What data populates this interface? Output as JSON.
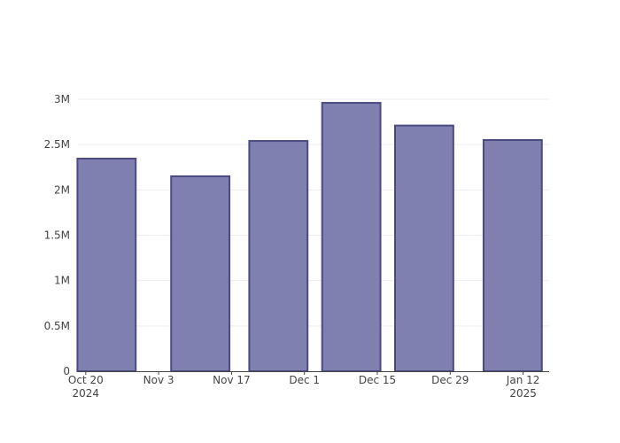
{
  "chart_data": {
    "type": "bar",
    "x": [
      "2024-10-24",
      "2024-11-11",
      "2024-11-26",
      "2024-12-10",
      "2024-12-24",
      "2025-01-10"
    ],
    "values": [
      2345000,
      2150000,
      2540000,
      2960000,
      2710000,
      2550000
    ],
    "color": "#7f7fb0",
    "edge_color": "#4b4b82",
    "xlim": [
      "2024-10-18T12:00",
      "2025-01-17T00:00"
    ],
    "xticks": [
      {
        "value": "2024-10-20",
        "label": "Oct 20\n2024"
      },
      {
        "value": "2024-11-03",
        "label": "Nov 3"
      },
      {
        "value": "2024-11-17",
        "label": "Nov 17"
      },
      {
        "value": "2024-12-01",
        "label": "Dec 1"
      },
      {
        "value": "2024-12-15",
        "label": "Dec 15"
      },
      {
        "value": "2024-12-29",
        "label": "Dec 29"
      },
      {
        "value": "2025-01-12",
        "label": "Jan 12\n2025"
      }
    ],
    "ylim": [
      0,
      3117000
    ],
    "yticks": [
      0,
      {
        "value": 500000,
        "label": "0.5M"
      },
      {
        "value": 1000000,
        "label": "1M"
      },
      {
        "value": 1500000,
        "label": "1.5M"
      },
      {
        "value": 2000000,
        "label": "2M"
      },
      {
        "value": 2500000,
        "label": "2.5M"
      },
      {
        "value": 3000000,
        "label": "3M"
      }
    ],
    "grid": true
  }
}
